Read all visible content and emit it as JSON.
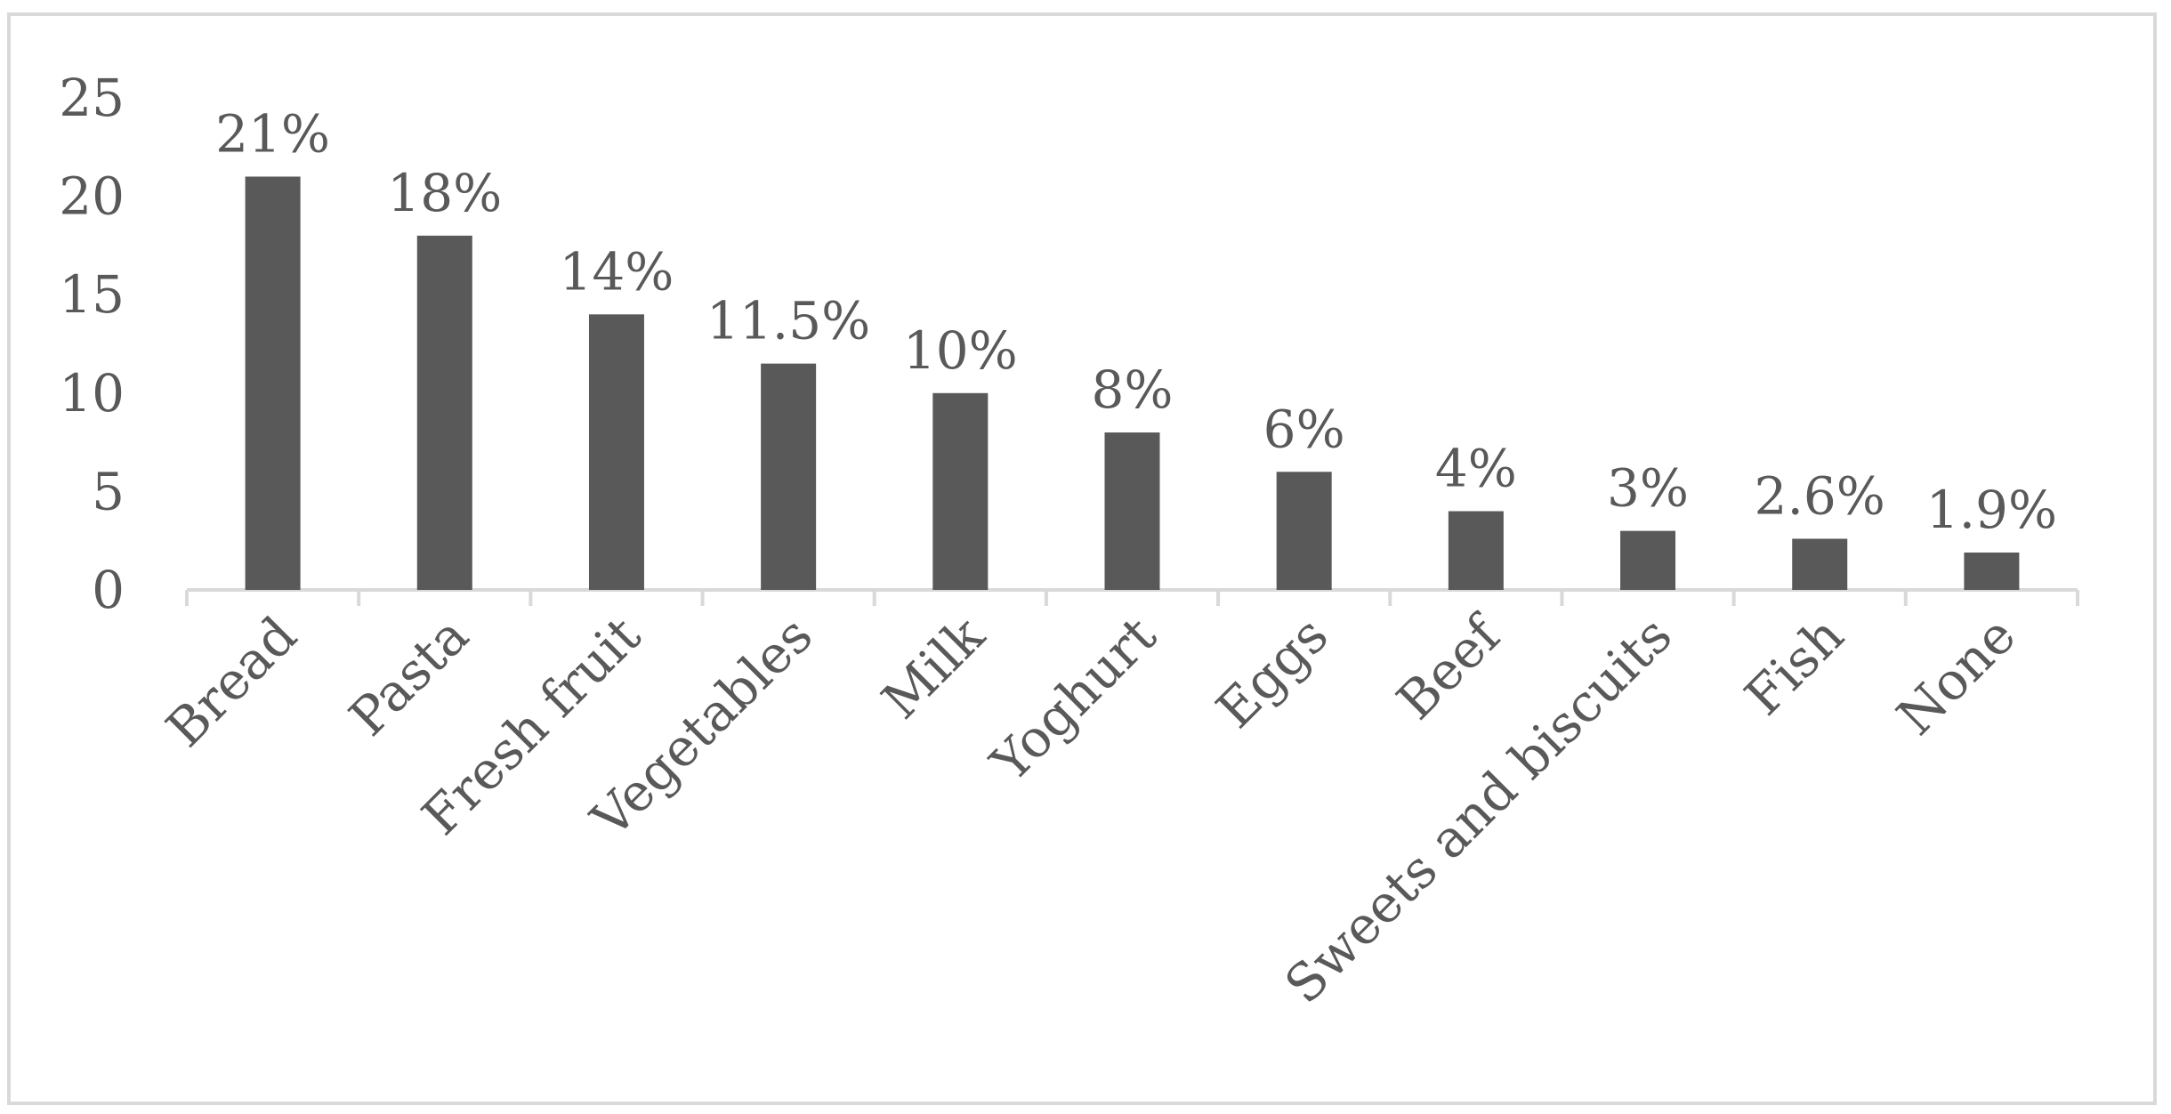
{
  "chart_data": {
    "type": "bar",
    "categories": [
      "Bread",
      "Pasta",
      "Fresh fruit",
      "Vegetables",
      "Milk",
      "Yoghurt",
      "Eggs",
      "Beef",
      "Sweets and biscuits",
      "Fish",
      "None"
    ],
    "values": [
      21,
      18,
      14,
      11.5,
      10,
      8,
      6,
      4,
      3,
      2.6,
      1.9
    ],
    "data_labels": [
      "21%",
      "18%",
      "14%",
      "11.5%",
      "10%",
      "8%",
      "6%",
      "4%",
      "3%",
      "2.6%",
      "1.9%"
    ],
    "y_ticks": [
      "0",
      "5",
      "10",
      "15",
      "20",
      "25"
    ],
    "ylim": [
      0,
      25
    ],
    "title": "",
    "xlabel": "",
    "ylabel": "",
    "grid": false,
    "legend": "none",
    "bar_color": "#595959",
    "axis_color": "#d9d9d9",
    "text_color": "#595959"
  }
}
